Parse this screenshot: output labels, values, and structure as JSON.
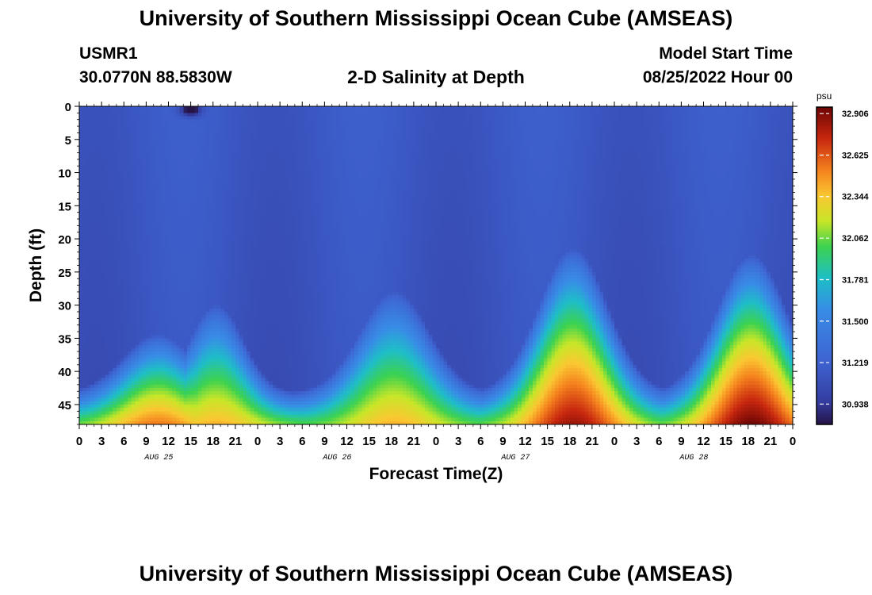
{
  "titles": {
    "main": "University of Southern Mississippi Ocean Cube (AMSEAS)",
    "repeat": "University of Southern Mississippi Ocean Cube (AMSEAS)"
  },
  "station": {
    "id": "USMR1",
    "coords": "30.0770N  88.5830W"
  },
  "model": {
    "label": "Model Start Time",
    "start": "08/25/2022 Hour 00"
  },
  "chart_data": {
    "type": "heatmap",
    "title": "2-D Salinity at Depth",
    "xlabel": "Forecast Time(Z)",
    "ylabel": "Depth (ft)",
    "x_range_hours": [
      0,
      96
    ],
    "xtick_step_hours": 3,
    "x_tick_labels": [
      "0",
      "3",
      "6",
      "9",
      "12",
      "15",
      "18",
      "21",
      "0",
      "3",
      "6",
      "9",
      "12",
      "15",
      "18",
      "21",
      "0",
      "3",
      "6",
      "9",
      "12",
      "15",
      "18",
      "21",
      "0",
      "3",
      "6",
      "9",
      "12",
      "15",
      "18",
      "21",
      "0"
    ],
    "day_labels": [
      {
        "hour": 10.5,
        "label": "AUG 25"
      },
      {
        "hour": 34.5,
        "label": "AUG 26"
      },
      {
        "hour": 58.5,
        "label": "AUG 27"
      },
      {
        "hour": 82.5,
        "label": "AUG 28"
      }
    ],
    "ylim": [
      48,
      0
    ],
    "y_ticks": [
      0,
      5,
      10,
      15,
      20,
      25,
      30,
      35,
      40,
      45
    ],
    "colorbar": {
      "unit": "psu",
      "min": 30.8,
      "max": 32.95,
      "ticks": [
        "32.906",
        "32.625",
        "32.344",
        "32.062",
        "31.781",
        "31.500",
        "31.219",
        "30.938"
      ]
    },
    "background_salinity": 31.15,
    "events": [
      {
        "peak_hour": 10.5,
        "top_depth_ft": 38.5,
        "bottom_salinity": 32.55
      },
      {
        "peak_hour": 18.5,
        "top_depth_ft": 34.0,
        "bottom_salinity": 32.4
      },
      {
        "peak_hour": 42.5,
        "top_depth_ft": 32.0,
        "bottom_salinity": 32.4
      },
      {
        "peak_hour": 66.5,
        "top_depth_ft": 25.5,
        "bottom_salinity": 32.85
      },
      {
        "peak_hour": 90.5,
        "top_depth_ft": 26.5,
        "bottom_salinity": 32.95
      }
    ],
    "surface_anomaly": {
      "hour": 15,
      "depth_ft": 0.5,
      "salinity": 30.82
    }
  }
}
